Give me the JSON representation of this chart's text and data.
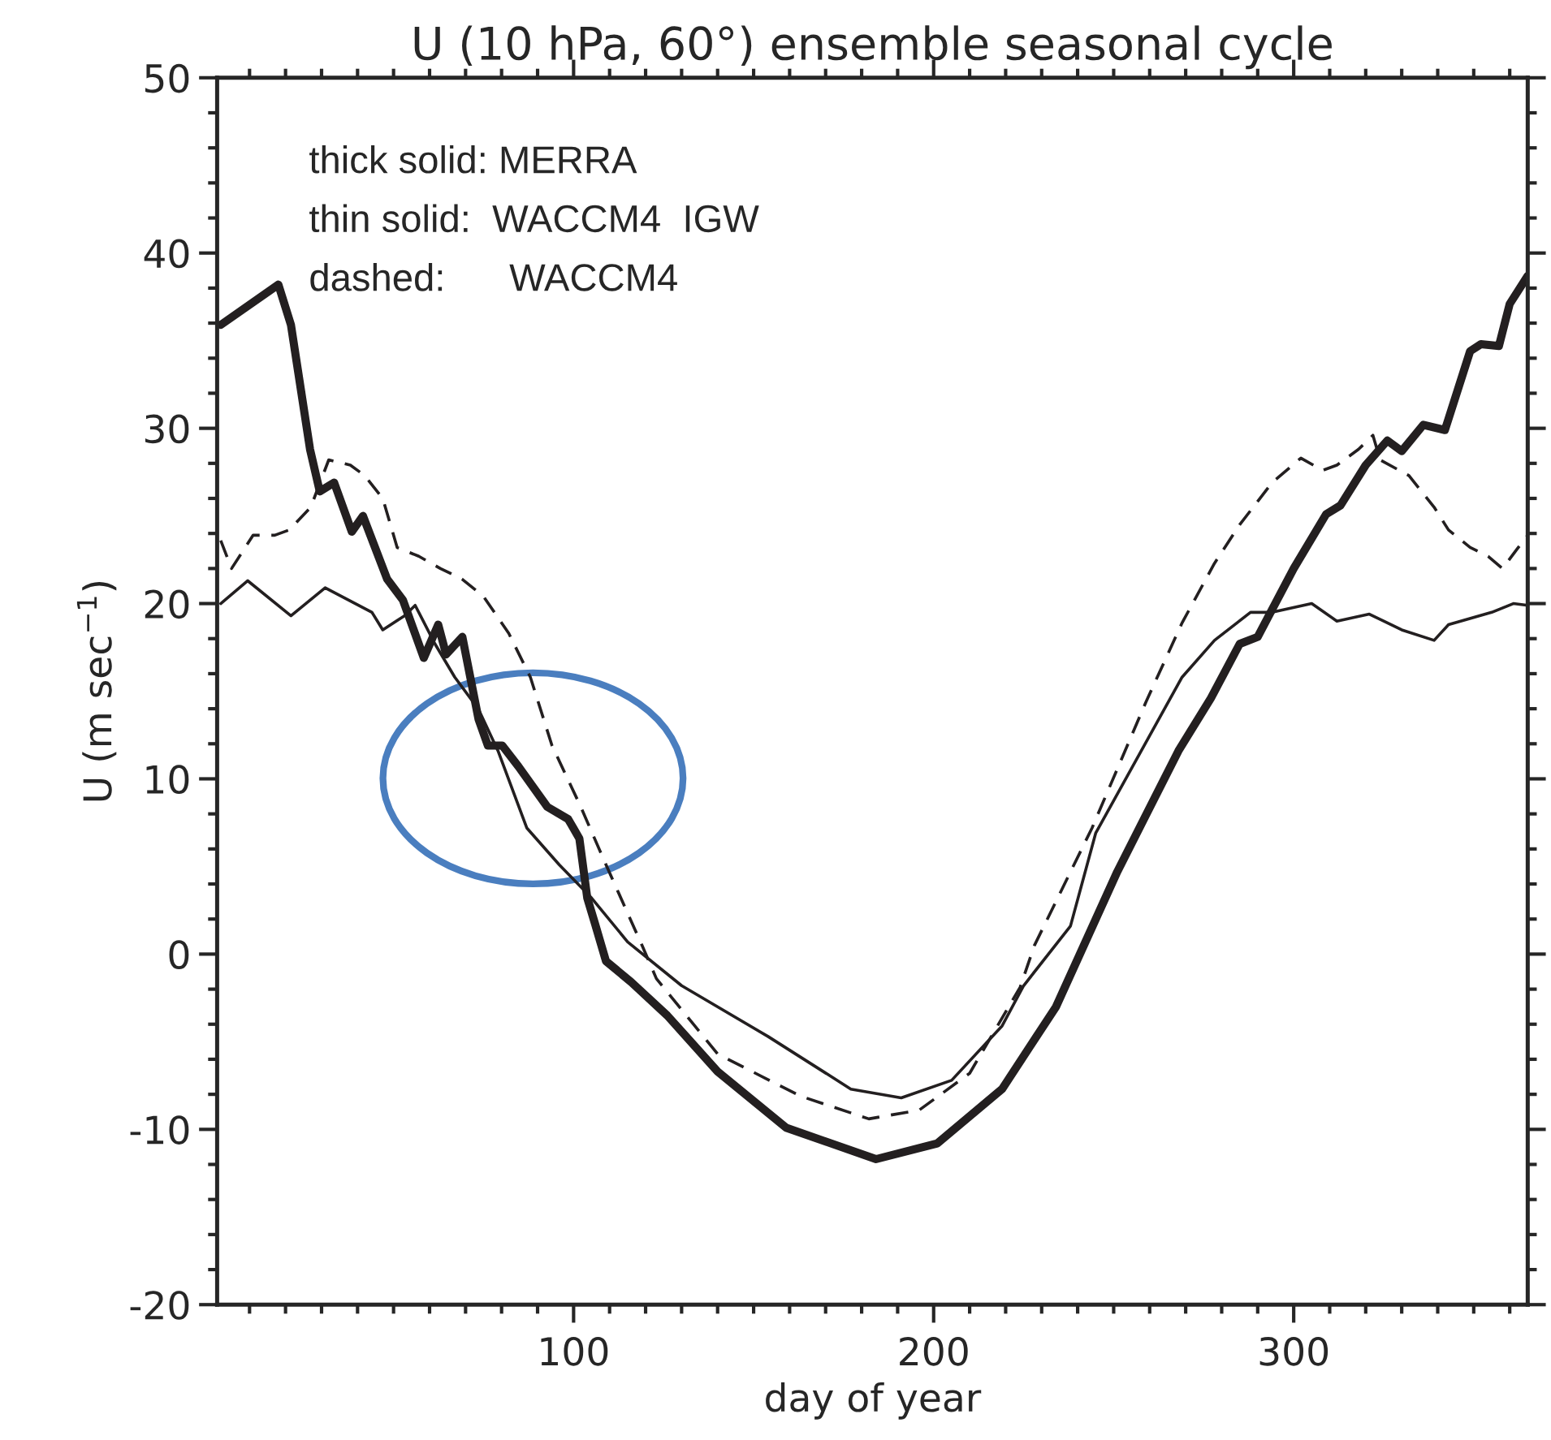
{
  "chart_data": {
    "type": "line",
    "title": "U (10 hPa, 60°) ensemble seasonal cycle",
    "xlabel": "day of year",
    "ylabel": "U (m sec$^{−1}$)",
    "annotations": [
      "thick solid: MERRA",
      "thin solid:  WACCM4  IGW",
      "dashed:      WACCM4"
    ],
    "xlim": [
      1,
      365
    ],
    "xticks": [
      100,
      200,
      300
    ],
    "ylim": [
      -20,
      50
    ],
    "yticks": [
      -20,
      -10,
      0,
      10,
      20,
      30,
      40,
      50
    ],
    "grid": false,
    "legend": false,
    "series": [
      {
        "color": "#231f20",
        "line_style": "solid",
        "x": [
          2,
          18,
          21.5,
          26.8,
          29.5,
          33.5,
          38.4,
          41.5,
          48.2,
          52.6,
          58.4,
          62.4,
          64.6,
          69.1,
          73.6,
          76.2,
          80.2,
          84.7,
          92.7,
          98.5,
          101.6,
          103.8,
          106,
          109,
          116,
          126,
          140,
          159,
          184,
          201,
          219,
          234,
          251,
          268,
          277,
          285,
          290,
          300,
          309,
          313,
          320,
          326,
          330,
          336,
          342,
          349,
          352,
          357,
          360,
          365
        ],
        "values": [
          35.9,
          38.2,
          35.9,
          28.8,
          26.4,
          26.9,
          24.1,
          25,
          21.4,
          20.2,
          16.9,
          18.8,
          17.1,
          18.1,
          13.4,
          11.9,
          11.9,
          10.7,
          8.4,
          7.7,
          6.6,
          3.2,
          1.7,
          -0.4,
          -1.6,
          -3.5,
          -6.7,
          -9.9,
          -11.7,
          -10.8,
          -7.7,
          -3,
          4.7,
          11.6,
          14.6,
          17.7,
          18.1,
          22,
          25.1,
          25.6,
          27.9,
          29.3,
          28.7,
          30.2,
          29.9,
          34.4,
          34.8,
          34.7,
          37.1,
          38.7
        ]
      },
      {
        "color": "#231f20",
        "line_style": "solid",
        "x": [
          2,
          9.5,
          21.5,
          31,
          44,
          47,
          53,
          56,
          61.5,
          67,
          73.5,
          79,
          87,
          96,
          105,
          115,
          130,
          154,
          177,
          191,
          205,
          219,
          225,
          238,
          245,
          269,
          278,
          288,
          294,
          305,
          312,
          321,
          330,
          339,
          343,
          355,
          361,
          365
        ],
        "values": [
          20,
          21.3,
          19.3,
          20.9,
          19.5,
          18.5,
          19.3,
          19.9,
          17.7,
          15.8,
          14,
          11.6,
          7.2,
          5.1,
          3.2,
          0.7,
          -1.8,
          -4.7,
          -7.7,
          -8.2,
          -7.2,
          -4.1,
          -1.8,
          1.6,
          6.9,
          15.8,
          17.9,
          19.5,
          19.5,
          20,
          19,
          19.4,
          18.5,
          17.9,
          18.8,
          19.5,
          20,
          19.9
        ]
      },
      {
        "color": "#231f20",
        "line_style": "dashed",
        "x": [
          2,
          5,
          11,
          17,
          21,
          27,
          32,
          38,
          42,
          47,
          51,
          57,
          63,
          69,
          75,
          82,
          88,
          94,
          102,
          109,
          119,
          123,
          140,
          163,
          182,
          196,
          210,
          224,
          228,
          244,
          259,
          269,
          278,
          285,
          294,
          302,
          308,
          312,
          318,
          322,
          324,
          332,
          339,
          343,
          349,
          354,
          358,
          362,
          365
        ],
        "values": [
          23.6,
          22,
          23.9,
          23.9,
          24.2,
          25.5,
          28.2,
          27.9,
          27.3,
          26,
          23.2,
          22.7,
          22,
          21.4,
          20.4,
          18.3,
          15.8,
          11.9,
          8.4,
          5.1,
          0.5,
          -1.4,
          -5.7,
          -8.1,
          -9.4,
          -8.9,
          -6.8,
          -1.9,
          0.5,
          7.2,
          14.4,
          18.9,
          22.3,
          24.5,
          26.9,
          28.3,
          27.6,
          27.9,
          28.8,
          29.6,
          28.2,
          27.3,
          25.5,
          24.2,
          23.2,
          22.7,
          22,
          23.1,
          23.9
        ]
      }
    ]
  }
}
